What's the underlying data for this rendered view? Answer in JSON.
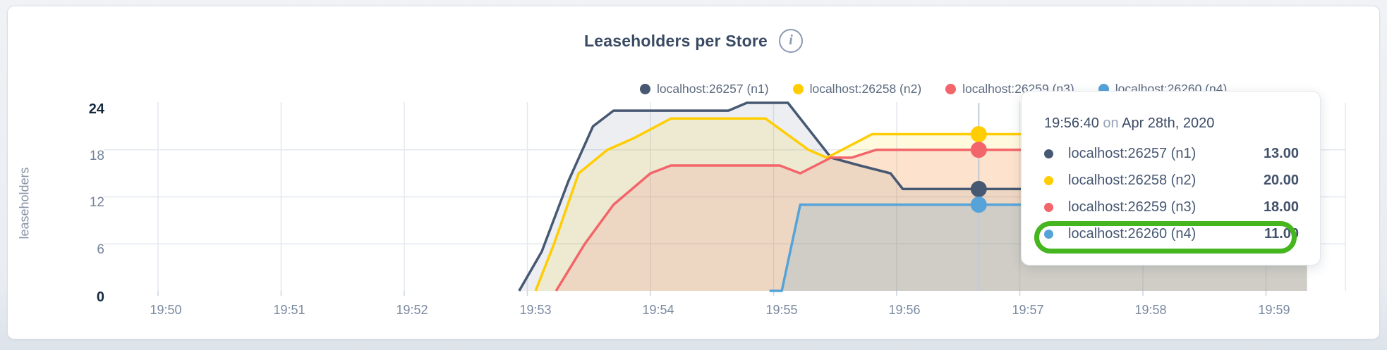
{
  "header": {
    "title": "Leaseholders per Store",
    "info_icon": "i"
  },
  "legend": {
    "items": [
      {
        "label": "localhost:26257 (n1)",
        "color": "#475872"
      },
      {
        "label": "localhost:26258 (n2)",
        "color": "#ffcd02"
      },
      {
        "label": "localhost:26259 (n3)",
        "color": "#f2656a"
      },
      {
        "label": "localhost:26260 (n4)",
        "color": "#55a3d9"
      }
    ]
  },
  "axes": {
    "y_title": "leaseholders",
    "y_ticks": [
      "24",
      "18",
      "12",
      "6",
      "0"
    ],
    "x_ticks": [
      "19:50",
      "19:51",
      "19:52",
      "19:53",
      "19:54",
      "19:55",
      "19:56",
      "19:57",
      "19:58",
      "19:59"
    ]
  },
  "tooltip": {
    "time": "19:56:40",
    "conjunction": "on",
    "date": "Apr 28th, 2020",
    "rows": [
      {
        "label": "localhost:26257 (n1)",
        "value": "13.00",
        "color": "#475872"
      },
      {
        "label": "localhost:26258 (n2)",
        "value": "20.00",
        "color": "#ffcd02"
      },
      {
        "label": "localhost:26259 (n3)",
        "value": "18.00",
        "color": "#f2656a"
      },
      {
        "label": "localhost:26260 (n4)",
        "value": "11.00",
        "color": "#55a3d9"
      }
    ],
    "highlighted_row": "localhost:26260 (n4)",
    "highlight_color": "#45b520"
  },
  "chart_data": {
    "type": "area",
    "title": "Leaseholders per Store",
    "ylabel": "leaseholders",
    "xlabel": "",
    "ylim": [
      0,
      24
    ],
    "y_ticks": [
      0,
      6,
      12,
      18,
      24
    ],
    "x_ticks": [
      "19:50",
      "19:51",
      "19:52",
      "19:53",
      "19:54",
      "19:55",
      "19:56",
      "19:57",
      "19:58",
      "19:59"
    ],
    "x_tick_interval_seconds": 60,
    "grid": true,
    "grid_color": "#e3e8ef",
    "tick_color": "#ccd4de",
    "legend_position": "top",
    "series": [
      {
        "name": "localhost:26257 (n1)",
        "color": "#475872",
        "fill": "rgba(71,88,114,0.10)",
        "points": [
          [
            176,
            0
          ],
          [
            187,
            5
          ],
          [
            200,
            14
          ],
          [
            212,
            21
          ],
          [
            222,
            23
          ],
          [
            278,
            23
          ],
          [
            287,
            24
          ],
          [
            307,
            24
          ],
          [
            328,
            17
          ],
          [
            342,
            16
          ],
          [
            357,
            15
          ],
          [
            363,
            13
          ],
          [
            560,
            13
          ]
        ]
      },
      {
        "name": "localhost:26258 (n2)",
        "color": "#ffcd02",
        "fill": "rgba(255,205,2,0.13)",
        "points": [
          [
            184,
            0
          ],
          [
            193,
            6
          ],
          [
            205,
            15
          ],
          [
            219,
            18
          ],
          [
            232,
            19.5
          ],
          [
            250,
            22
          ],
          [
            296,
            22
          ],
          [
            317,
            18
          ],
          [
            326,
            17
          ],
          [
            348,
            20
          ],
          [
            560,
            20
          ]
        ]
      },
      {
        "name": "localhost:26259 (n3)",
        "color": "#f2656a",
        "fill": "rgba(242,101,106,0.14)",
        "points": [
          [
            194,
            0
          ],
          [
            208,
            6
          ],
          [
            222,
            11
          ],
          [
            240,
            15
          ],
          [
            250,
            16
          ],
          [
            303,
            16
          ],
          [
            313,
            15
          ],
          [
            328,
            17
          ],
          [
            338,
            17
          ],
          [
            350,
            18
          ],
          [
            560,
            18
          ]
        ]
      },
      {
        "name": "localhost:26260 (n4)",
        "color": "#55a3d9",
        "fill": "rgba(85,163,217,0.20)",
        "points": [
          [
            298,
            0
          ],
          [
            304,
            0
          ],
          [
            313,
            11
          ],
          [
            560,
            11
          ]
        ]
      }
    ],
    "hover": {
      "time": "19:56:40",
      "date": "Apr 28th, 2020",
      "t_seconds": 400,
      "values": [
        13,
        20,
        18,
        11
      ],
      "line_color": "#c2c9d4"
    }
  }
}
